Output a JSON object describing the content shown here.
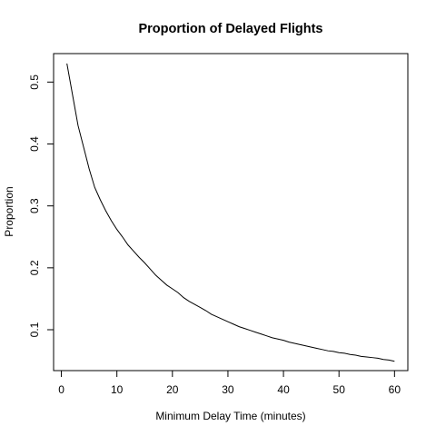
{
  "chart_data": {
    "type": "line",
    "title": "Proportion of Delayed Flights",
    "xlabel": "Minimum Delay Time (minutes)",
    "ylabel": "Proportion",
    "xlim": [
      -1.4,
      62.4
    ],
    "ylim": [
      0.034,
      0.546
    ],
    "xticks": [
      0,
      10,
      20,
      30,
      40,
      50,
      60
    ],
    "yticks": [
      0.1,
      0.2,
      0.3,
      0.4,
      0.5
    ],
    "grid": false,
    "colors": {
      "line": "#000000",
      "axis": "#000000",
      "background": "#ffffff"
    },
    "series": [
      {
        "x": [
          1,
          2,
          3,
          4,
          5,
          6,
          7,
          8,
          9,
          10,
          11,
          12,
          13,
          14,
          15,
          16,
          17,
          18,
          19,
          20,
          21,
          22,
          23,
          24,
          25,
          26,
          27,
          28,
          29,
          30,
          31,
          32,
          33,
          34,
          35,
          36,
          37,
          38,
          39,
          40,
          41,
          42,
          43,
          44,
          45,
          46,
          47,
          48,
          49,
          50,
          51,
          52,
          53,
          54,
          55,
          56,
          57,
          58,
          59,
          60
        ],
        "y": [
          0.53,
          0.48,
          0.43,
          0.395,
          0.36,
          0.33,
          0.31,
          0.292,
          0.276,
          0.262,
          0.25,
          0.237,
          0.227,
          0.217,
          0.208,
          0.198,
          0.188,
          0.18,
          0.172,
          0.166,
          0.16,
          0.152,
          0.146,
          0.141,
          0.136,
          0.131,
          0.125,
          0.121,
          0.117,
          0.113,
          0.109,
          0.105,
          0.102,
          0.099,
          0.096,
          0.093,
          0.09,
          0.087,
          0.085,
          0.083,
          0.08,
          0.078,
          0.076,
          0.074,
          0.072,
          0.07,
          0.068,
          0.066,
          0.065,
          0.063,
          0.062,
          0.06,
          0.059,
          0.057,
          0.056,
          0.055,
          0.054,
          0.052,
          0.051,
          0.049
        ]
      }
    ]
  }
}
